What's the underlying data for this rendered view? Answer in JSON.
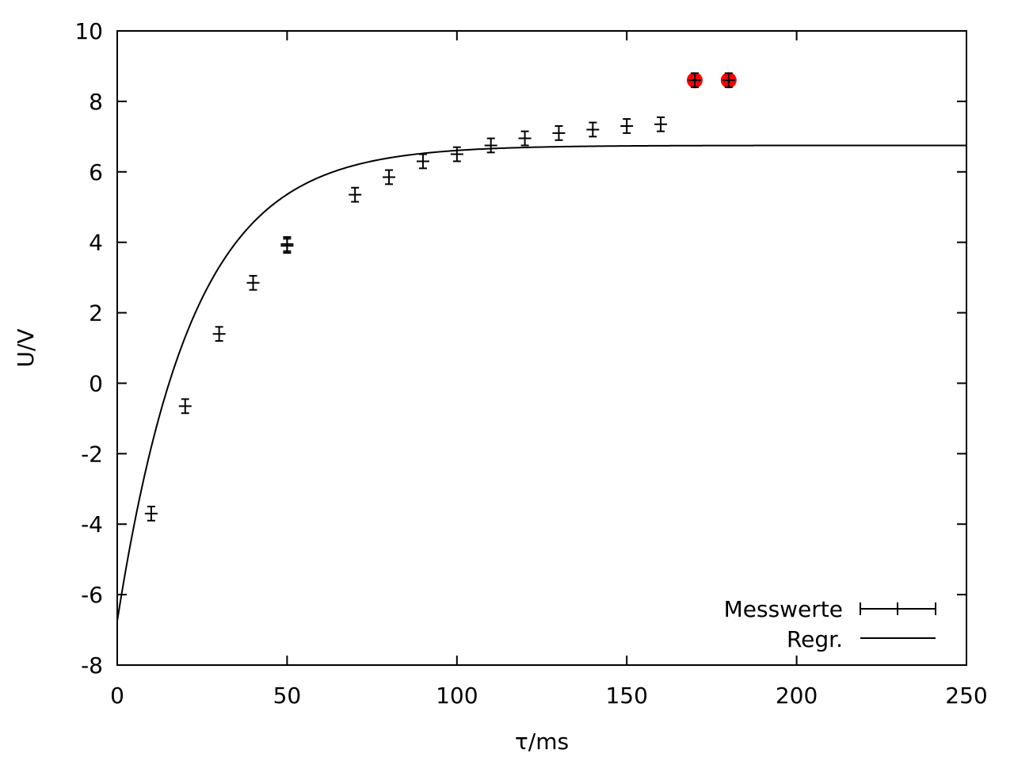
{
  "chart_data": {
    "type": "scatter",
    "xlabel": "τ/ms",
    "ylabel": "U/V",
    "xlim": [
      0,
      250
    ],
    "ylim": [
      -8,
      10
    ],
    "x_ticks": [
      0,
      50,
      100,
      150,
      200,
      250
    ],
    "y_ticks": [
      -8,
      -6,
      -4,
      -2,
      0,
      2,
      4,
      6,
      8,
      10
    ],
    "grid": false,
    "legend_position": "bottom-right",
    "series": [
      {
        "name": "Messwerte",
        "style": "errorbars",
        "color": "#000000",
        "points": [
          {
            "x": 10,
            "y": -3.7,
            "xerr": 1,
            "yerr": 0.2
          },
          {
            "x": 20,
            "y": -0.65,
            "xerr": 1,
            "yerr": 0.2
          },
          {
            "x": 30,
            "y": 1.4,
            "xerr": 1,
            "yerr": 0.2
          },
          {
            "x": 40,
            "y": 2.85,
            "xerr": 1,
            "yerr": 0.2
          },
          {
            "x": 50,
            "y": 3.95,
            "xerr": 1,
            "yerr": 0.2
          },
          {
            "x": 50,
            "y": 3.9,
            "xerr": 1,
            "yerr": 0.2
          },
          {
            "x": 70,
            "y": 5.35,
            "xerr": 1,
            "yerr": 0.2
          },
          {
            "x": 80,
            "y": 5.85,
            "xerr": 1,
            "yerr": 0.2
          },
          {
            "x": 90,
            "y": 6.3,
            "xerr": 1,
            "yerr": 0.2
          },
          {
            "x": 100,
            "y": 6.5,
            "xerr": 1,
            "yerr": 0.2
          },
          {
            "x": 110,
            "y": 6.75,
            "xerr": 1,
            "yerr": 0.2
          },
          {
            "x": 120,
            "y": 6.95,
            "xerr": 1,
            "yerr": 0.2
          },
          {
            "x": 130,
            "y": 7.1,
            "xerr": 1,
            "yerr": 0.2
          },
          {
            "x": 140,
            "y": 7.2,
            "xerr": 1,
            "yerr": 0.2
          },
          {
            "x": 150,
            "y": 7.3,
            "xerr": 1,
            "yerr": 0.2
          },
          {
            "x": 160,
            "y": 7.35,
            "xerr": 1,
            "yerr": 0.2
          },
          {
            "x": 170,
            "y": 8.6,
            "xerr": 1,
            "yerr": 0.2
          },
          {
            "x": 180,
            "y": 8.6,
            "xerr": 1,
            "yerr": 0.2
          }
        ]
      },
      {
        "name": "Regr.",
        "style": "line",
        "color": "#000000",
        "function": "U(t) = 6.75 - 13.5 * exp(-t / 22)",
        "A": 6.75,
        "B": 13.5,
        "tau": 22
      }
    ],
    "highlighted_points": {
      "color": "#ff0000",
      "points": [
        {
          "x": 170,
          "y": 8.6
        },
        {
          "x": 180,
          "y": 8.6
        }
      ]
    }
  }
}
